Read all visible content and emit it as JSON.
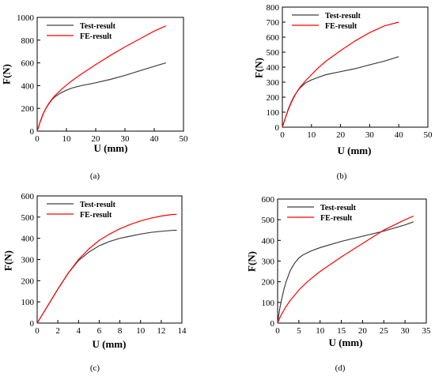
{
  "chart_data": [
    {
      "type": "line",
      "caption": "(a)",
      "xlabel": "U (mm)",
      "ylabel": "F(N)",
      "xlim": [
        0,
        50
      ],
      "ylim": [
        0,
        1000
      ],
      "xticks": [
        0,
        10,
        20,
        30,
        40,
        50
      ],
      "yticks": [
        0,
        200,
        400,
        600,
        800,
        1000
      ],
      "grid": false,
      "legend": "top-left",
      "series": [
        {
          "name": "Test-result",
          "color": "#404040",
          "x": [
            0,
            1,
            2,
            3,
            4,
            5,
            6,
            8,
            10,
            12,
            15,
            20,
            25,
            30,
            35,
            40,
            44
          ],
          "y": [
            0,
            80,
            150,
            200,
            240,
            275,
            300,
            335,
            360,
            380,
            400,
            425,
            455,
            490,
            530,
            570,
            600
          ]
        },
        {
          "name": "FE-result",
          "color": "#ff0000",
          "x": [
            0,
            1,
            2,
            3,
            4,
            5,
            6,
            8,
            10,
            12,
            15,
            20,
            25,
            30,
            35,
            40,
            44
          ],
          "y": [
            0,
            80,
            150,
            200,
            245,
            280,
            310,
            360,
            405,
            445,
            500,
            585,
            665,
            740,
            810,
            880,
            925
          ]
        }
      ]
    },
    {
      "type": "line",
      "caption": "(b)",
      "xlabel": "U (mm)",
      "ylabel": "F(N)",
      "xlim": [
        0,
        50
      ],
      "ylim": [
        0,
        800
      ],
      "xticks": [
        0,
        10,
        20,
        30,
        40,
        50
      ],
      "yticks": [
        0,
        100,
        200,
        300,
        400,
        500,
        600,
        700,
        800
      ],
      "grid": false,
      "legend": "top-left",
      "series": [
        {
          "name": "Test-result",
          "color": "#404040",
          "x": [
            0,
            1,
            2,
            3,
            4,
            5,
            6,
            8,
            10,
            12,
            15,
            20,
            25,
            30,
            35,
            40
          ],
          "y": [
            0,
            60,
            120,
            165,
            205,
            235,
            260,
            295,
            315,
            330,
            350,
            370,
            390,
            415,
            440,
            470
          ]
        },
        {
          "name": "FE-result",
          "color": "#ff0000",
          "x": [
            0,
            1,
            2,
            3,
            4,
            5,
            6,
            8,
            10,
            12,
            15,
            20,
            25,
            30,
            35,
            40
          ],
          "y": [
            0,
            60,
            115,
            160,
            200,
            235,
            265,
            310,
            350,
            390,
            440,
            510,
            575,
            630,
            675,
            700
          ]
        }
      ]
    },
    {
      "type": "line",
      "caption": "(c)",
      "xlabel": "U (mm)",
      "ylabel": "F(N)",
      "xlim": [
        0,
        14
      ],
      "ylim": [
        0,
        600
      ],
      "xticks": [
        0,
        2,
        4,
        6,
        8,
        10,
        12,
        14
      ],
      "yticks": [
        0,
        100,
        200,
        300,
        400,
        500,
        600
      ],
      "grid": false,
      "legend": "top-left",
      "series": [
        {
          "name": "Test-result",
          "color": "#404040",
          "x": [
            0,
            1,
            2,
            3,
            4,
            5,
            6,
            7,
            8,
            9,
            10,
            11,
            12,
            13,
            13.5
          ],
          "y": [
            0,
            80,
            160,
            235,
            295,
            335,
            365,
            385,
            400,
            410,
            420,
            428,
            433,
            437,
            438
          ]
        },
        {
          "name": "FE-result",
          "color": "#ff0000",
          "x": [
            0,
            1,
            2,
            3,
            4,
            5,
            6,
            7,
            8,
            9,
            10,
            11,
            12,
            13,
            13.5
          ],
          "y": [
            0,
            80,
            160,
            235,
            300,
            350,
            390,
            420,
            445,
            465,
            482,
            495,
            505,
            512,
            513
          ]
        }
      ]
    },
    {
      "type": "line",
      "caption": "(d)",
      "xlabel": "U (mm)",
      "ylabel": "F(N)",
      "xlim": [
        0,
        35
      ],
      "ylim": [
        0,
        600
      ],
      "xticks": [
        0,
        5,
        10,
        15,
        20,
        25,
        30,
        35
      ],
      "yticks": [
        0,
        100,
        200,
        300,
        400,
        500,
        600
      ],
      "grid": false,
      "legend": "top-left",
      "series": [
        {
          "name": "Test-result",
          "color": "#404040",
          "x": [
            0,
            0.5,
            1,
            1.5,
            2,
            3,
            4,
            5,
            6,
            8,
            10,
            15,
            20,
            25,
            30,
            32
          ],
          "y": [
            0,
            70,
            120,
            165,
            200,
            255,
            290,
            315,
            330,
            350,
            365,
            395,
            420,
            445,
            475,
            490
          ]
        },
        {
          "name": "FE-result",
          "color": "#ff0000",
          "x": [
            0,
            0.5,
            1,
            2,
            3,
            4,
            5,
            7,
            10,
            15,
            20,
            25,
            30,
            32
          ],
          "y": [
            0,
            25,
            45,
            80,
            110,
            135,
            160,
            200,
            250,
            320,
            385,
            450,
            500,
            518
          ]
        }
      ]
    }
  ]
}
